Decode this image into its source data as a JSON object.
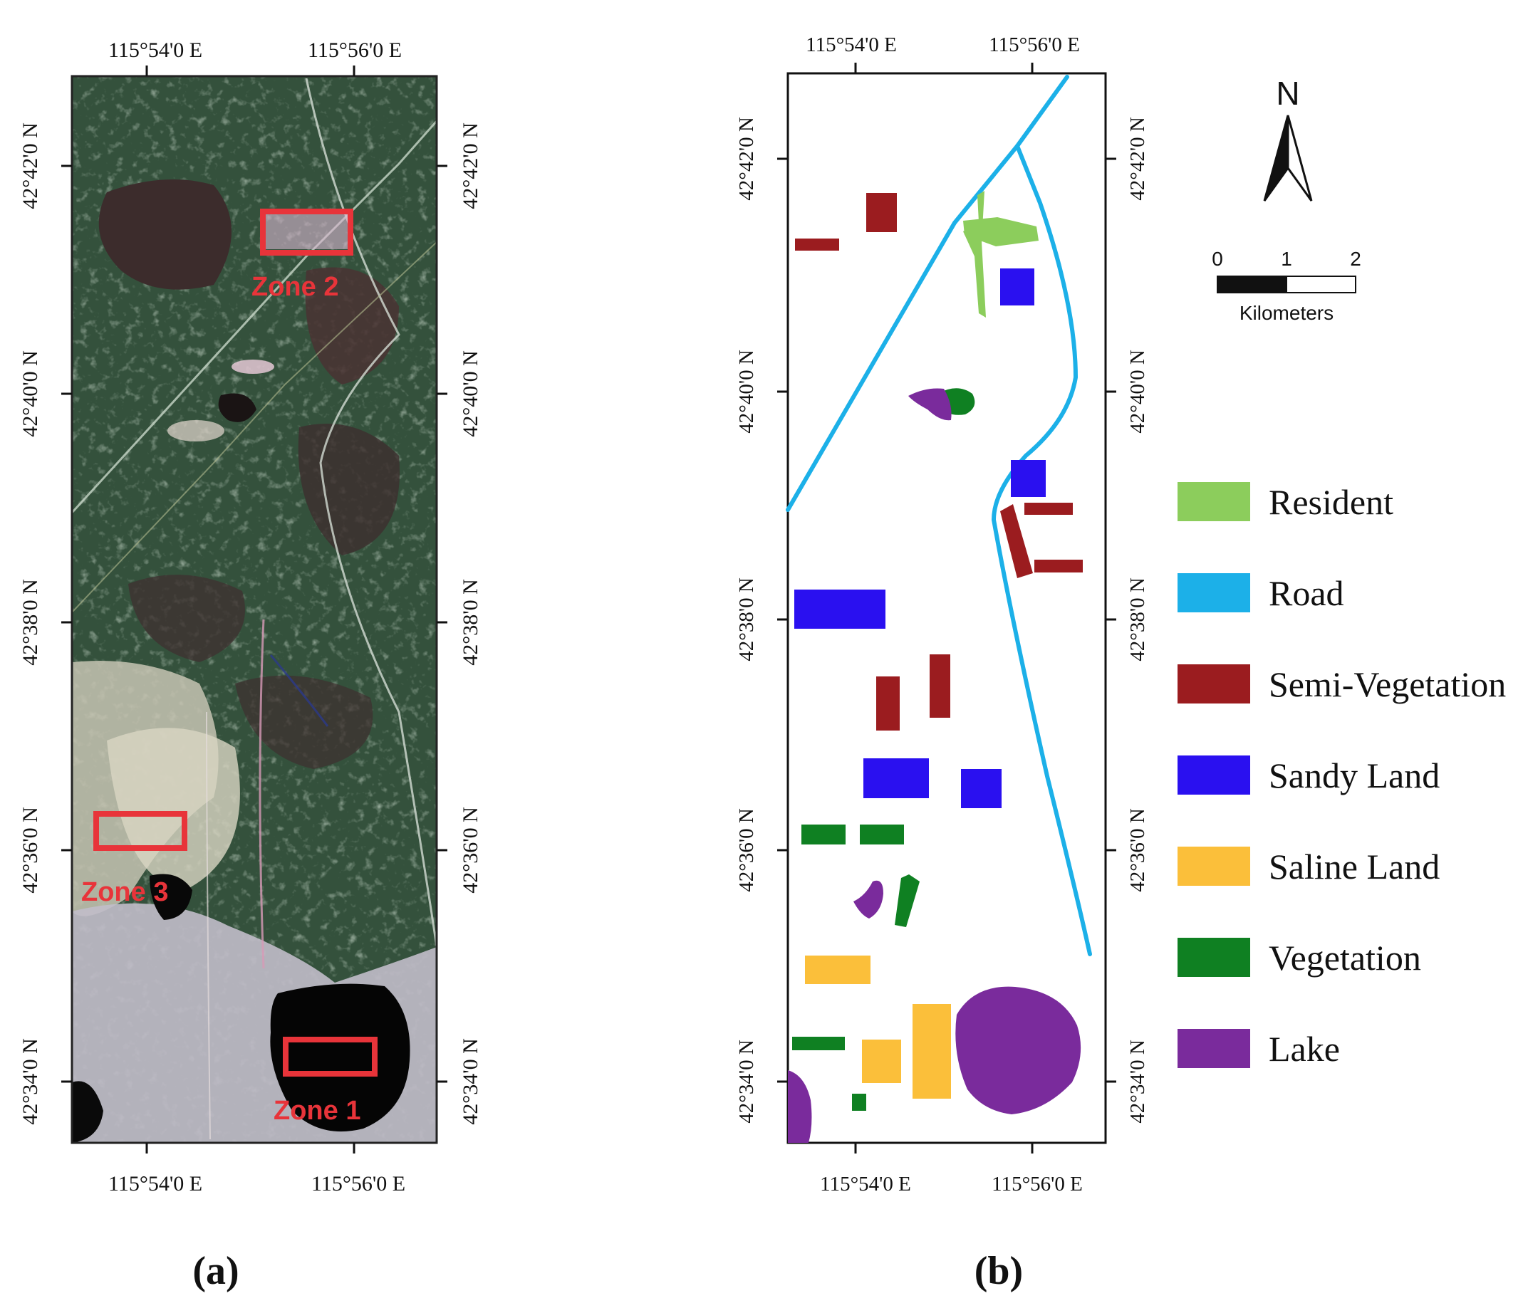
{
  "panel_a": {
    "caption": "(a)",
    "top_ticks": [
      "115°54'0 E",
      "115°56'0 E"
    ],
    "bottom_ticks": [
      "115°54'0 E",
      "115°56'0 E"
    ],
    "left_ticks": [
      "42°42'0 N",
      "42°40'0 N",
      "42°38'0 N",
      "42°36'0 N",
      "42°34'0 N"
    ],
    "right_ticks": [
      "42°42'0 N",
      "42°40'0 N",
      "42°38'0 N",
      "42°36'0 N",
      "42°34'0 N"
    ],
    "zones": [
      {
        "label": "Zone 2"
      },
      {
        "label": "Zone 3"
      },
      {
        "label": "Zone 1"
      }
    ],
    "zone_color": "#e8343a"
  },
  "panel_b": {
    "caption": "(b)",
    "top_ticks": [
      "115°54'0 E",
      "115°56'0 E"
    ],
    "bottom_ticks": [
      "115°54'0 E",
      "115°56'0 E"
    ],
    "left_ticks": [
      "42°42'0 N",
      "42°40'0 N",
      "42°38'0 N",
      "42°36'0 N",
      "42°34'0 N"
    ],
    "right_ticks": [
      "42°42'0 N",
      "42°40'0 N",
      "42°38'0 N",
      "42°36'0 N",
      "42°34'0 N"
    ]
  },
  "north_arrow": {
    "label": "N"
  },
  "scale_bar": {
    "ticks": [
      "0",
      "1",
      "2"
    ],
    "unit": "Kilometers"
  },
  "legend": [
    {
      "label": "Resident",
      "color": "#8ccd5c"
    },
    {
      "label": "Road",
      "color": "#1cb0e8"
    },
    {
      "label": "Semi-Vegetation",
      "color": "#9b1c1f"
    },
    {
      "label": "Sandy Land",
      "color": "#2a10f0"
    },
    {
      "label": "Saline Land",
      "color": "#fbbf3a"
    },
    {
      "label": "Vegetation",
      "color": "#0f8022"
    },
    {
      "label": "Lake",
      "color": "#7a2b9c"
    }
  ]
}
